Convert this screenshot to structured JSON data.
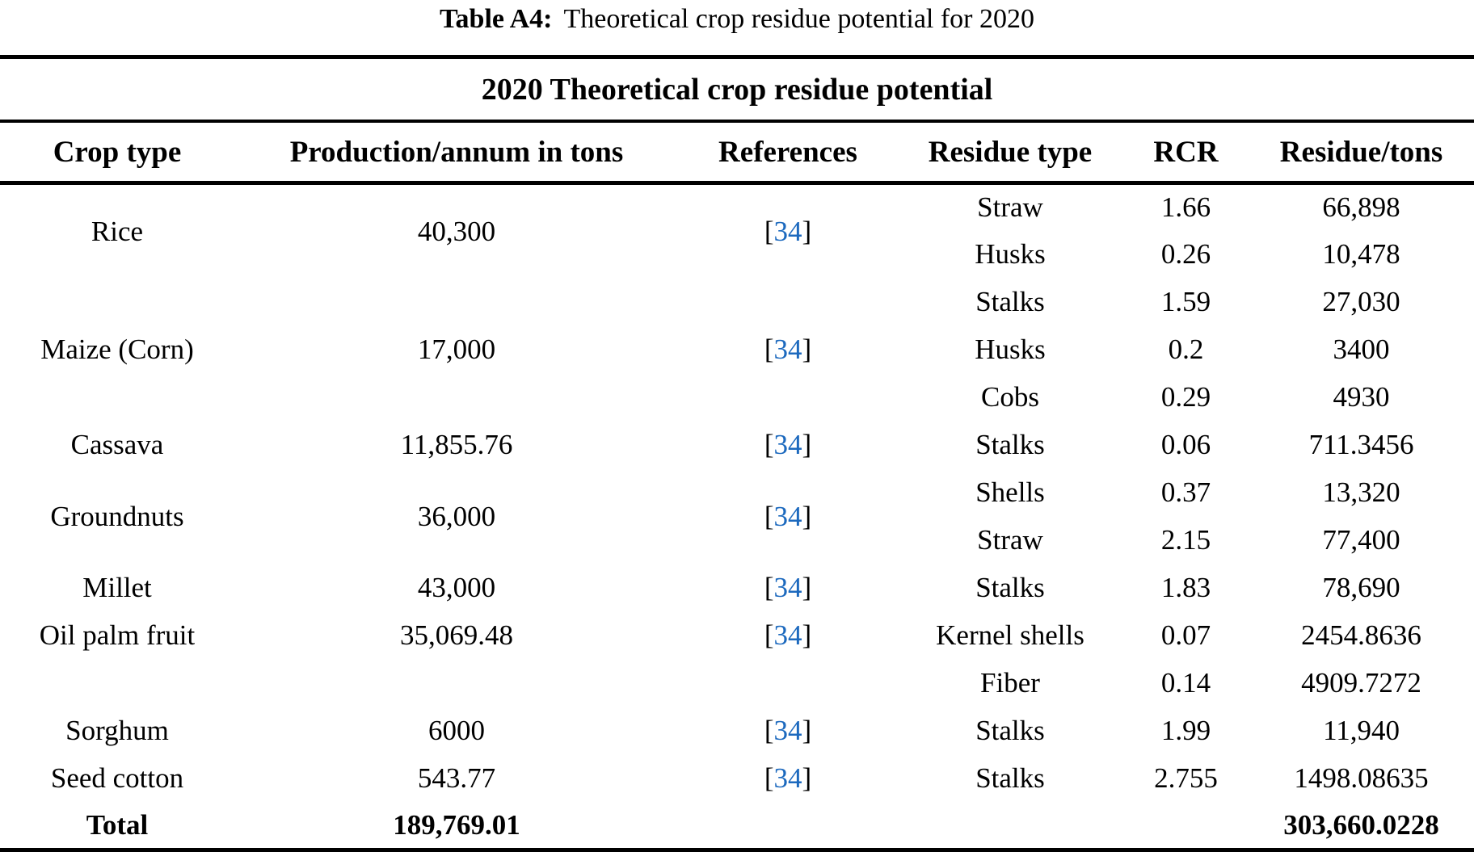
{
  "page": {
    "background_color": "#ffffff",
    "text_color": "#000000",
    "link_color": "#1c69be"
  },
  "caption": {
    "label": "Table A4:",
    "text": "Theoretical crop residue potential for 2020"
  },
  "table": {
    "span_header": "2020 Theoretical crop residue potential",
    "columns": [
      "Crop type",
      "Production/annum in tons",
      "References",
      "Residue type",
      "RCR",
      "Residue/tons"
    ],
    "reference_brackets": [
      "[",
      "]"
    ],
    "groups": [
      {
        "crop": "Rice",
        "production": "40,300",
        "reference": "34",
        "crop_valign": "middle",
        "residues": [
          {
            "type": "Straw",
            "rcr": "1.66",
            "tons": "66,898"
          },
          {
            "type": "Husks",
            "rcr": "0.26",
            "tons": "10,478"
          }
        ]
      },
      {
        "crop": "Maize (Corn)",
        "production": "17,000",
        "reference": "34",
        "crop_valign": "middle",
        "residues": [
          {
            "type": "Stalks",
            "rcr": "1.59",
            "tons": "27,030"
          },
          {
            "type": "Husks",
            "rcr": "0.2",
            "tons": "3400"
          },
          {
            "type": "Cobs",
            "rcr": "0.29",
            "tons": "4930"
          }
        ]
      },
      {
        "crop": "Cassava",
        "production": "11,855.76",
        "reference": "34",
        "crop_valign": "middle",
        "residues": [
          {
            "type": "Stalks",
            "rcr": "0.06",
            "tons": "711.3456"
          }
        ]
      },
      {
        "crop": "Groundnuts",
        "production": "36,000",
        "reference": "34",
        "crop_valign": "middle",
        "residues": [
          {
            "type": "Shells",
            "rcr": "0.37",
            "tons": "13,320"
          },
          {
            "type": "Straw",
            "rcr": "2.15",
            "tons": "77,400"
          }
        ]
      },
      {
        "crop": "Millet",
        "production": "43,000",
        "reference": "34",
        "crop_valign": "middle",
        "residues": [
          {
            "type": "Stalks",
            "rcr": "1.83",
            "tons": "78,690"
          }
        ]
      },
      {
        "crop": "Oil palm fruit",
        "production": "35,069.48",
        "reference": "34",
        "crop_valign": "top",
        "residues": [
          {
            "type": "Kernel shells",
            "rcr": "0.07",
            "tons": "2454.8636"
          },
          {
            "type": "Fiber",
            "rcr": "0.14",
            "tons": "4909.7272"
          }
        ]
      },
      {
        "crop": "Sorghum",
        "production": "6000",
        "reference": "34",
        "crop_valign": "middle",
        "residues": [
          {
            "type": "Stalks",
            "rcr": "1.99",
            "tons": "11,940"
          }
        ]
      },
      {
        "crop": "Seed cotton",
        "production": "543.77",
        "reference": "34",
        "crop_valign": "middle",
        "residues": [
          {
            "type": "Stalks",
            "rcr": "2.755",
            "tons": "1498.08635"
          }
        ]
      }
    ],
    "total": {
      "label": "Total",
      "production": "189,769.01",
      "residue": "303,660.0228"
    }
  }
}
